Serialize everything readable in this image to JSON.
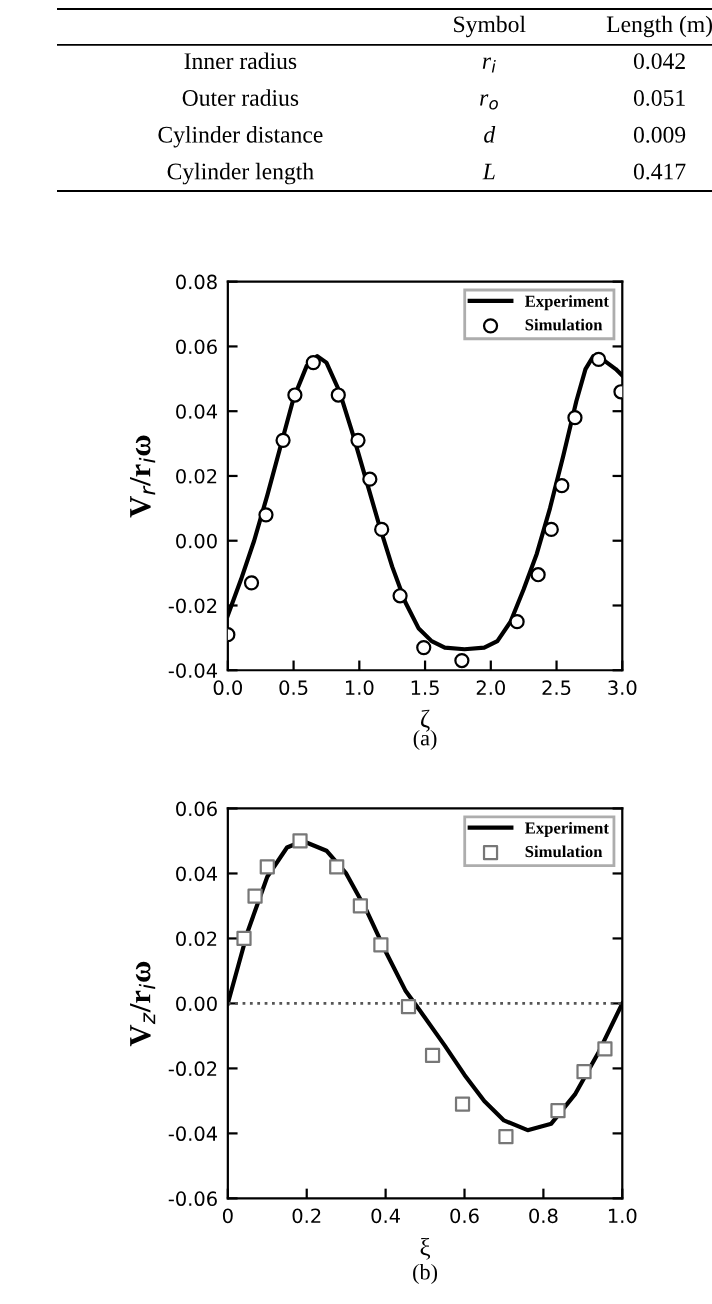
{
  "chart_data": [
    {
      "type": "other",
      "categories": [
        null,
        "Symbol",
        "Length (m)"
      ],
      "y_categories": [
        "Inner radius",
        "Outer radius",
        "Cylinder distance",
        "Cylinder length"
      ],
      "cell_labels": [
        [
          "r$_{i}$",
          "0.042"
        ],
        [
          "r$_{o}$",
          "0.051"
        ],
        [
          "d",
          "0.009"
        ],
        [
          "L",
          "0.417"
        ]
      ]
    },
    {
      "type": "line",
      "xlabel": "ζ",
      "ylabel": "V$_{r}$/r$_{i}$ω",
      "annotations": [
        "(a)"
      ],
      "legend": "top right",
      "xlim": [
        0,
        3
      ],
      "xticks": [
        {
          "value": 0,
          "label": "0.0"
        },
        0.5,
        {
          "value": 1,
          "label": "1.0"
        },
        1.5,
        {
          "value": 2,
          "label": "2.0"
        },
        2.5,
        {
          "value": 3,
          "label": "3.0"
        }
      ],
      "ylim": [
        -0.04,
        0.08
      ],
      "yticks": [
        {
          "value": -0.04,
          "label": "-0.04"
        },
        {
          "value": -0.02,
          "label": "-0.02"
        },
        {
          "value": 0,
          "label": "0.00"
        },
        {
          "value": 0.02,
          "label": "0.02"
        },
        {
          "value": 0.04,
          "label": "0.04"
        },
        {
          "value": 0.06,
          "label": "0.06"
        },
        {
          "value": 0.08,
          "label": "0.08"
        }
      ],
      "series": [
        {
          "name": "Experiment",
          "type": "line",
          "color": "#000000",
          "marker": "none",
          "line_style": "solid",
          "x": [
            0,
            0.1,
            0.2,
            0.3,
            0.4,
            0.5,
            0.6,
            0.68,
            0.75,
            0.85,
            0.95,
            1.05,
            1.15,
            1.25,
            1.35,
            1.45,
            1.55,
            1.65,
            1.8,
            1.95,
            2.05,
            2.15,
            2.25,
            2.35,
            2.45,
            2.55,
            2.65,
            2.72,
            2.78,
            2.85,
            2.95,
            3.0
          ],
          "values": [
            -0.023,
            -0.012,
            0.0,
            0.014,
            0.029,
            0.044,
            0.054,
            0.057,
            0.055,
            0.046,
            0.033,
            0.019,
            0.005,
            -0.008,
            -0.019,
            -0.027,
            -0.031,
            -0.033,
            -0.0335,
            -0.033,
            -0.031,
            -0.025,
            -0.015,
            -0.004,
            0.01,
            0.026,
            0.043,
            0.053,
            0.057,
            0.056,
            0.053,
            0.051
          ]
        },
        {
          "name": "Simulation",
          "type": "scatter",
          "color": "#000000",
          "marker": "circle",
          "x": [
            0,
            0.18,
            0.29,
            0.42,
            0.51,
            0.65,
            0.84,
            0.99,
            1.08,
            1.17,
            1.31,
            1.49,
            1.78,
            2.2,
            2.36,
            2.46,
            2.54,
            2.64,
            2.82,
            2.99
          ],
          "values": [
            -0.029,
            -0.013,
            0.008,
            0.031,
            0.045,
            0.055,
            0.045,
            0.031,
            0.019,
            0.0035,
            -0.017,
            -0.033,
            -0.037,
            -0.025,
            -0.0105,
            0.0035,
            0.017,
            0.038,
            0.056,
            0.046
          ]
        }
      ]
    },
    {
      "type": "line",
      "xlabel": "ξ",
      "ylabel": "V$_{z}$/r$_{i}$ω",
      "annotations": [
        "(b)"
      ],
      "legend": "top right",
      "xlim": [
        0,
        1
      ],
      "xticks": [
        0,
        0.2,
        0.4,
        0.6,
        0.8,
        {
          "value": 1,
          "label": "1.0"
        }
      ],
      "ylim": [
        -0.06,
        0.06
      ],
      "yticks": [
        {
          "value": -0.06,
          "label": "-0.06"
        },
        {
          "value": -0.04,
          "label": "-0.04"
        },
        {
          "value": -0.02,
          "label": "-0.02"
        },
        {
          "value": 0,
          "label": "0.00"
        },
        {
          "value": 0.02,
          "label": "0.02"
        },
        {
          "value": 0.04,
          "label": "0.04"
        },
        {
          "value": 0.06,
          "label": "0.06"
        }
      ],
      "ref_lines": [
        {
          "axis": "y",
          "value": 0,
          "color": "#555555",
          "line_style": "dotted"
        }
      ],
      "series": [
        {
          "name": "Experiment",
          "type": "line",
          "color": "#000000",
          "marker": "none",
          "line_style": "solid",
          "x": [
            0,
            0.05,
            0.1,
            0.15,
            0.19,
            0.25,
            0.3,
            0.35,
            0.4,
            0.45,
            0.48,
            0.55,
            0.6,
            0.65,
            0.7,
            0.76,
            0.82,
            0.88,
            0.94,
            1.0
          ],
          "values": [
            0,
            0.022,
            0.039,
            0.048,
            0.05,
            0.047,
            0.04,
            0.029,
            0.016,
            0.004,
            -0.001,
            -0.013,
            -0.022,
            -0.03,
            -0.036,
            -0.039,
            -0.037,
            -0.028,
            -0.015,
            0
          ]
        },
        {
          "name": "Simulation",
          "type": "scatter",
          "color": "#777777",
          "marker": "square",
          "x": [
            0.041,
            0.069,
            0.1,
            0.183,
            0.276,
            0.336,
            0.388,
            0.458,
            0.519,
            0.595,
            0.705,
            0.837,
            0.903,
            0.956
          ],
          "values": [
            0.02,
            0.033,
            0.042,
            0.05,
            0.042,
            0.03,
            0.018,
            -0.001,
            -0.016,
            -0.031,
            -0.041,
            -0.033,
            -0.021,
            -0.014
          ]
        }
      ]
    }
  ]
}
